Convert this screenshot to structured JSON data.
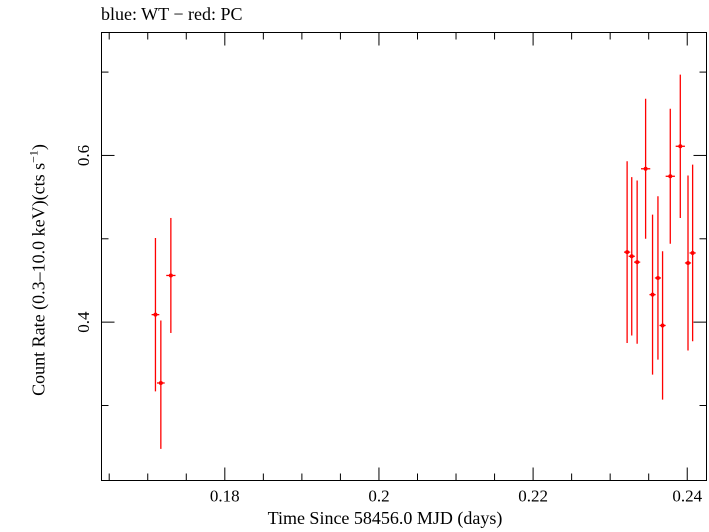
{
  "chart_data": {
    "type": "scatter",
    "title": "blue: WT − red: PC",
    "xlabel": "Time Since 58456.0 MJD (days)",
    "ylabel_main": "Count Rate (0.3–10.0 keV)(cts s",
    "ylabel_sup": "−1",
    "ylabel_close": ")",
    "xlim": [
      0.164,
      0.2425
    ],
    "ylim": [
      0.21,
      0.7475
    ],
    "xticks_major": [
      0.18,
      0.2,
      0.22,
      0.24
    ],
    "xtick_labels": [
      "0.18",
      "0.2",
      "0.22",
      "0.24"
    ],
    "xticks_minor": [
      0.165,
      0.17,
      0.175,
      0.185,
      0.19,
      0.195,
      0.205,
      0.21,
      0.215,
      0.225,
      0.23,
      0.235
    ],
    "yticks_major": [
      0.4,
      0.6
    ],
    "ytick_labels": [
      "0.4",
      "0.6"
    ],
    "yticks_minor": [
      0.3,
      0.5,
      0.7
    ],
    "grid": false,
    "series": [
      {
        "name": "PC",
        "color": "#ff0000",
        "points": [
          {
            "x": 0.171,
            "xerr": 0.0005,
            "y": 0.409,
            "ylo": 0.317,
            "yhi": 0.501
          },
          {
            "x": 0.1717,
            "xerr": 0.0005,
            "y": 0.327,
            "ylo": 0.248,
            "yhi": 0.402
          },
          {
            "x": 0.173,
            "xerr": 0.0006,
            "y": 0.456,
            "ylo": 0.387,
            "yhi": 0.525
          },
          {
            "x": 0.2322,
            "xerr": 0.0004,
            "y": 0.484,
            "ylo": 0.375,
            "yhi": 0.593
          },
          {
            "x": 0.2328,
            "xerr": 0.0004,
            "y": 0.479,
            "ylo": 0.384,
            "yhi": 0.574
          },
          {
            "x": 0.2335,
            "xerr": 0.0004,
            "y": 0.472,
            "ylo": 0.374,
            "yhi": 0.57
          },
          {
            "x": 0.2346,
            "xerr": 0.0006,
            "y": 0.584,
            "ylo": 0.5,
            "yhi": 0.668
          },
          {
            "x": 0.2355,
            "xerr": 0.0004,
            "y": 0.433,
            "ylo": 0.337,
            "yhi": 0.529
          },
          {
            "x": 0.2362,
            "xerr": 0.0004,
            "y": 0.453,
            "ylo": 0.355,
            "yhi": 0.551
          },
          {
            "x": 0.2368,
            "xerr": 0.0004,
            "y": 0.396,
            "ylo": 0.307,
            "yhi": 0.485
          },
          {
            "x": 0.2378,
            "xerr": 0.0006,
            "y": 0.575,
            "ylo": 0.494,
            "yhi": 0.656
          },
          {
            "x": 0.2391,
            "xerr": 0.0006,
            "y": 0.611,
            "ylo": 0.525,
            "yhi": 0.697
          },
          {
            "x": 0.2401,
            "xerr": 0.0004,
            "y": 0.471,
            "ylo": 0.366,
            "yhi": 0.576
          },
          {
            "x": 0.2407,
            "xerr": 0.0004,
            "y": 0.483,
            "ylo": 0.377,
            "yhi": 0.589
          }
        ]
      }
    ]
  }
}
